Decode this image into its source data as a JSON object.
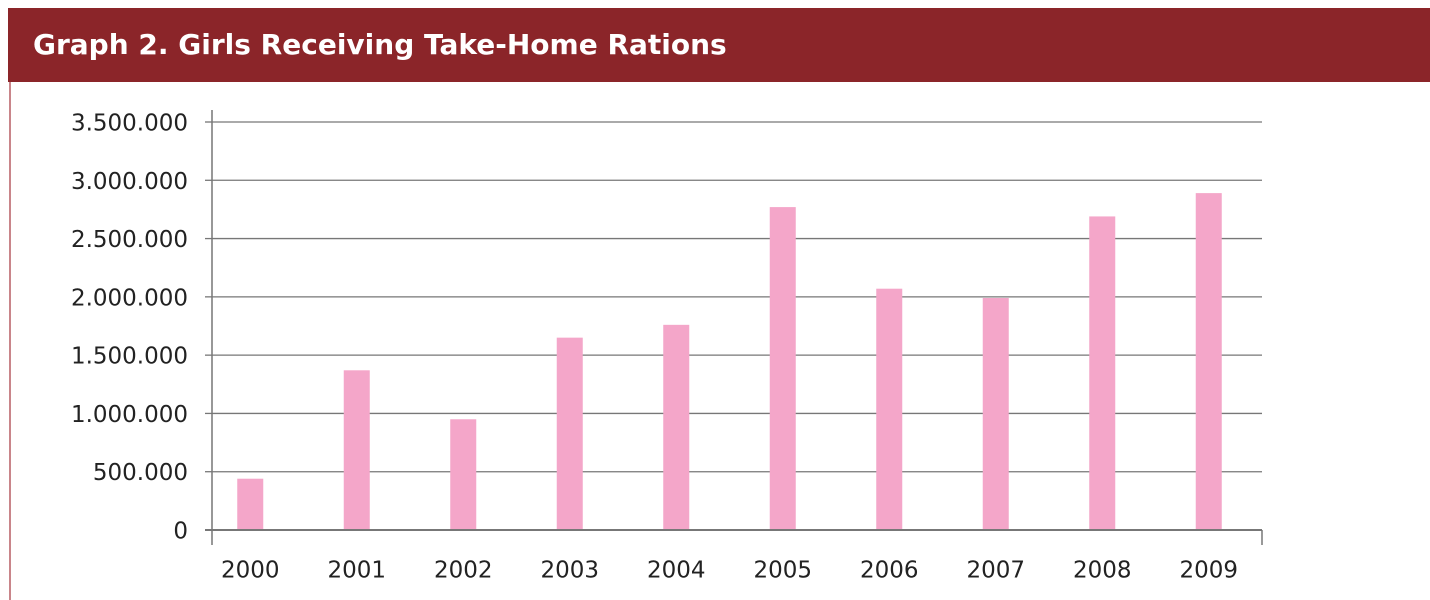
{
  "chart_data": {
    "type": "bar",
    "title": "Graph 2. Girls Receiving Take-Home Rations",
    "categories": [
      "2000",
      "2001",
      "2002",
      "2003",
      "2004",
      "2005",
      "2006",
      "2007",
      "2008",
      "2009"
    ],
    "values": [
      440000,
      1370000,
      950000,
      1650000,
      1760000,
      2770000,
      2070000,
      1990000,
      2690000,
      2890000
    ],
    "color": "#f4a6c9",
    "ylim": [
      0,
      3500000
    ],
    "yticks": [
      0,
      {
        "value": 500000,
        "label": "500.000"
      },
      {
        "value": 1000000,
        "label": "1.000.000"
      },
      {
        "value": 1500000,
        "label": "1.500.000"
      },
      {
        "value": 2000000,
        "label": "2.000.000"
      },
      {
        "value": 2500000,
        "label": "2.500.000"
      },
      {
        "value": 3000000,
        "label": "3.000.000"
      },
      {
        "value": 3500000,
        "label": "3.500.000"
      }
    ],
    "grid": true
  }
}
